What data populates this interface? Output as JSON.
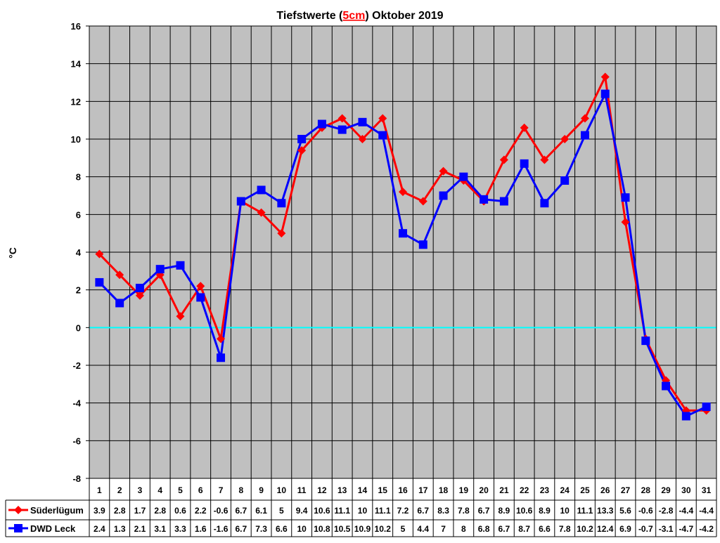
{
  "chart_data": {
    "type": "line",
    "title_parts": [
      "Tiefstwerte (",
      "5cm",
      ") Oktober 2019"
    ],
    "ylabel": "°C",
    "xlabel": "",
    "ylim": [
      -8,
      16
    ],
    "ytick_step": 2,
    "grid": true,
    "legend_placement": "bottom-left data table",
    "categories": [
      "1",
      "2",
      "3",
      "4",
      "5",
      "6",
      "7",
      "8",
      "9",
      "10",
      "11",
      "12",
      "13",
      "14",
      "15",
      "16",
      "17",
      "18",
      "19",
      "20",
      "21",
      "22",
      "23",
      "24",
      "25",
      "26",
      "27",
      "28",
      "29",
      "30",
      "31"
    ],
    "series": [
      {
        "name": "Süderlügum",
        "color": "#ff0000",
        "marker": "diamond",
        "values": [
          3.9,
          2.8,
          1.7,
          2.8,
          0.6,
          2.2,
          -0.6,
          6.7,
          6.1,
          5,
          9.4,
          10.6,
          11.1,
          10,
          11.1,
          7.2,
          6.7,
          8.3,
          7.8,
          6.7,
          8.9,
          10.6,
          8.9,
          10,
          11.1,
          13.3,
          5.6,
          -0.6,
          -2.8,
          -4.4,
          -4.4
        ]
      },
      {
        "name": "DWD Leck",
        "color": "#0000ff",
        "marker": "square",
        "values": [
          2.4,
          1.3,
          2.1,
          3.1,
          3.3,
          1.6,
          -1.6,
          6.7,
          7.3,
          6.6,
          10,
          10.8,
          10.5,
          10.9,
          10.2,
          5,
          4.4,
          7,
          8,
          6.8,
          6.7,
          8.7,
          6.6,
          7.8,
          10.2,
          12.4,
          6.9,
          -0.7,
          -3.1,
          -4.7,
          -4.2
        ]
      }
    ],
    "colors": {
      "plot_background": "#c0c0c0",
      "zero_line": "#00ffff",
      "title_highlight": "#ff0000"
    }
  }
}
